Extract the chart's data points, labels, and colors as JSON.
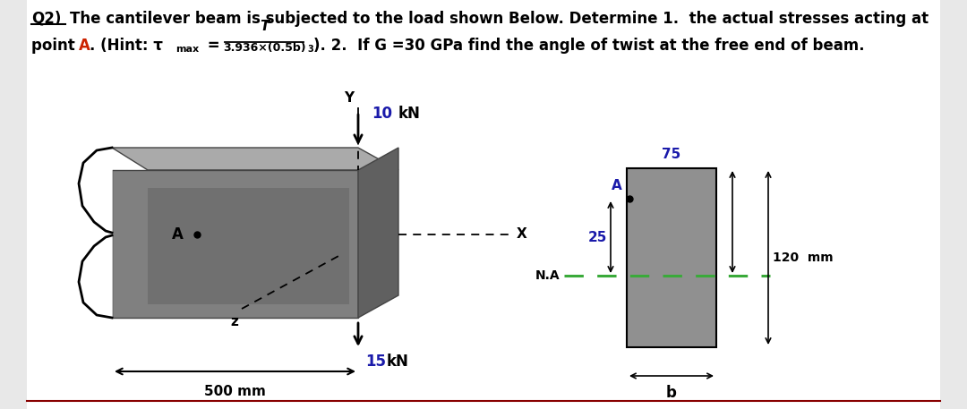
{
  "title_line1": "The cantilever beam is subjected to the load shown Below. Determine 1.  the actual stresses acting at",
  "title_line2a": "point ",
  "title_line2b": "A",
  "title_line2c": ". (Hint: τ",
  "title_line2_rest": "). 2.  If G =30 GPa find the angle of twist at the free end of beam.",
  "q2_label": "Q2)",
  "text_color": "#1a1aaa",
  "black": "#000000",
  "frac_num": "T",
  "frac_den": "3.936×(0.5b)",
  "frac_sup": "3",
  "beam_front_color": "#787878",
  "beam_top_color": "#aaaaaa",
  "beam_right_color": "#666666",
  "wall_color": "white",
  "cross_color": "#888888",
  "na_color": "#3aaa3a",
  "dim_color": "#1a1aaa",
  "force_color": "#1a1aaa",
  "load_10": "10",
  "load_10_unit": "kN",
  "load_15": "15",
  "load_15_unit": "kN",
  "dim_500": "500 mm",
  "dim_75": "75",
  "dim_25": "25",
  "dim_120": "120  mm",
  "label_b": "b",
  "label_Y": "Y",
  "label_X": "X",
  "label_Z": "z",
  "label_A_beam": "A",
  "label_A_cs": "A",
  "label_NA": "N.A"
}
